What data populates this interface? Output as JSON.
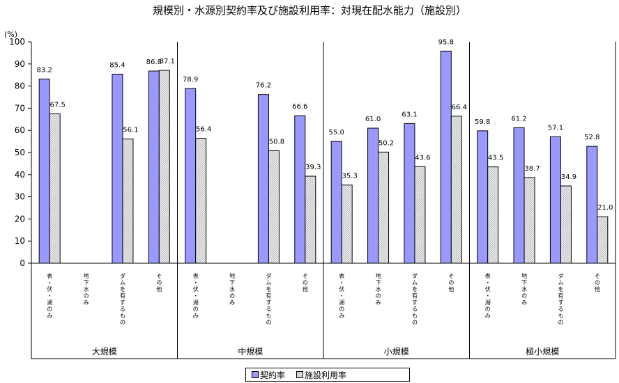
{
  "chart_data": {
    "type": "bar",
    "title": "規模別・水源別契約率及び施設利用率：対現在配水能力（施設別）",
    "ylabel": "(%)",
    "ylim": [
      0,
      100
    ],
    "yticks": [
      "0",
      "10",
      "20",
      "30",
      "40",
      "50",
      "60",
      "70",
      "80",
      "90",
      "100"
    ],
    "grid": false,
    "legend_position": "bottom-center",
    "groups": [
      {
        "label": "大規模",
        "categories": [
          "表・伏・湖のみ",
          "地下水のみ",
          "ダムを有するもの",
          "その他"
        ],
        "series": [
          {
            "name": "契約率",
            "values": [
              83.2,
              null,
              85.4,
              86.8
            ],
            "labels": [
              "83.2",
              "",
              "85.4",
              "86.8"
            ]
          },
          {
            "name": "施設利用率",
            "values": [
              67.5,
              null,
              56.1,
              87.1
            ],
            "labels": [
              "67.5",
              "",
              "56.1",
              "87.1"
            ]
          }
        ]
      },
      {
        "label": "中規模",
        "categories": [
          "表・伏・湖のみ",
          "地下水のみ",
          "ダムを有するもの",
          "その他"
        ],
        "series": [
          {
            "name": "契約率",
            "values": [
              78.9,
              null,
              76.2,
              66.6
            ],
            "labels": [
              "78.9",
              "",
              "76.2",
              "66.6"
            ]
          },
          {
            "name": "施設利用率",
            "values": [
              56.4,
              null,
              50.8,
              39.3
            ],
            "labels": [
              "56.4",
              "",
              "50.8",
              "39.3"
            ]
          }
        ]
      },
      {
        "label": "小規模",
        "categories": [
          "表・伏・湖のみ",
          "地下水のみ",
          "ダムを有するもの",
          "その他"
        ],
        "series": [
          {
            "name": "契約率",
            "values": [
              55.0,
              61.0,
              63.1,
              95.8
            ],
            "labels": [
              "55.0",
              "61.0",
              "63.1",
              "95.8"
            ]
          },
          {
            "name": "施設利用率",
            "values": [
              35.3,
              50.2,
              43.6,
              66.4
            ],
            "labels": [
              "35.3",
              "50.2",
              "43.6",
              "66.4"
            ]
          }
        ]
      },
      {
        "label": "極小規模",
        "categories": [
          "表・伏・湖のみ",
          "地下水のみ",
          "ダムを有するもの",
          "その他"
        ],
        "series": [
          {
            "name": "契約率",
            "values": [
              59.8,
              61.2,
              57.1,
              52.8
            ],
            "labels": [
              "59.8",
              "61.2",
              "57.1",
              "52.8"
            ]
          },
          {
            "name": "施設利用率",
            "values": [
              43.5,
              38.7,
              34.9,
              21.0
            ],
            "labels": [
              "43.5",
              "38.7",
              "34.9",
              "21.0"
            ]
          }
        ]
      }
    ],
    "colors": {
      "契約率": "#9999ff",
      "施設利用率": "#e6e6e6"
    }
  }
}
